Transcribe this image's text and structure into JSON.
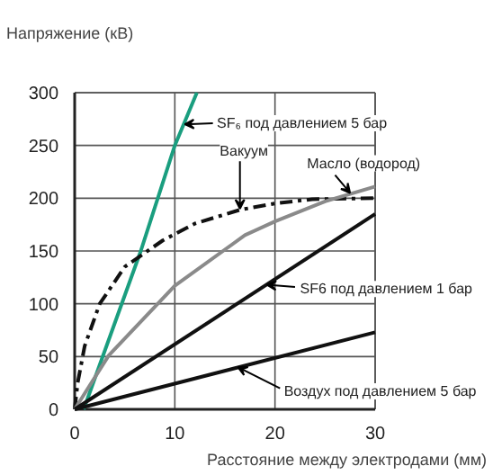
{
  "chart_data": {
    "type": "line",
    "ylabel": "Напряжение (кВ)",
    "xlabel": "Расстояние между электродами (мм)",
    "xlim": [
      0,
      30
    ],
    "ylim": [
      0,
      300
    ],
    "xticks": [
      0,
      10,
      20,
      30
    ],
    "yticks": [
      0,
      50,
      100,
      150,
      200,
      250,
      300
    ],
    "grid": true,
    "marker": "none",
    "series": [
      {
        "color": "#1a9e7f",
        "x": [
          0.9,
          6.6,
          10,
          12.2
        ],
        "values": [
          0,
          150,
          250,
          300
        ]
      },
      {
        "color": "#111111",
        "line_style": "dashed",
        "x": [
          0,
          0.3,
          1,
          2.5,
          5,
          8.8,
          12,
          16.5,
          20,
          23.7,
          30
        ],
        "values": [
          0,
          25,
          60,
          100,
          135,
          160,
          176,
          189,
          195,
          199,
          200
        ]
      },
      {
        "color": "#8a8a8a",
        "x": [
          0,
          3.4,
          10,
          17,
          20,
          25,
          30
        ],
        "values": [
          0,
          51,
          117,
          165,
          178,
          197,
          211
        ]
      },
      {
        "color": "#111111",
        "x": [
          0,
          30
        ],
        "values": [
          0,
          185
        ]
      },
      {
        "color": "#111111",
        "x": [
          0,
          30
        ],
        "values": [
          0,
          73
        ]
      }
    ],
    "annotations": [
      {
        "text": "SF₆ под давлением 5 бар",
        "x": 11,
        "y": 270
      },
      {
        "text": "Вакуум",
        "x": 16.5,
        "y": 190
      },
      {
        "text": "Масло (водород)",
        "x": 27.5,
        "y": 205
      },
      {
        "text": "SF6 под давлением 1 бар",
        "x": 19.2,
        "y": 118
      },
      {
        "text": "Воздух под давлением 5 бар",
        "x": 16.3,
        "y": 40
      }
    ]
  }
}
